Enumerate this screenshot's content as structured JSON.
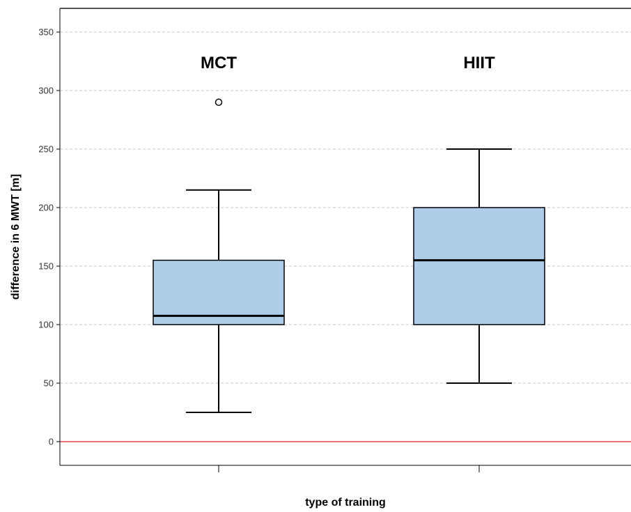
{
  "chart_data": {
    "type": "box",
    "xlabel": "type of training",
    "ylabel": "difference in 6 MWT [m]",
    "ylim": [
      -20,
      370
    ],
    "yticks": [
      0,
      50,
      100,
      150,
      200,
      250,
      300,
      350
    ],
    "grid": true,
    "reference_line": {
      "y": 0,
      "color": "#e8474c"
    },
    "box_fill": "#aecde9",
    "groups": [
      {
        "label": "MCT",
        "whisker_low": 25,
        "q1": 100,
        "median": 107.5,
        "q3": 155,
        "whisker_high": 215,
        "outliers": [
          290
        ]
      },
      {
        "label": "HIIT",
        "whisker_low": 50,
        "q1": 100,
        "median": 155,
        "q3": 200,
        "whisker_high": 250,
        "outliers": []
      }
    ]
  }
}
